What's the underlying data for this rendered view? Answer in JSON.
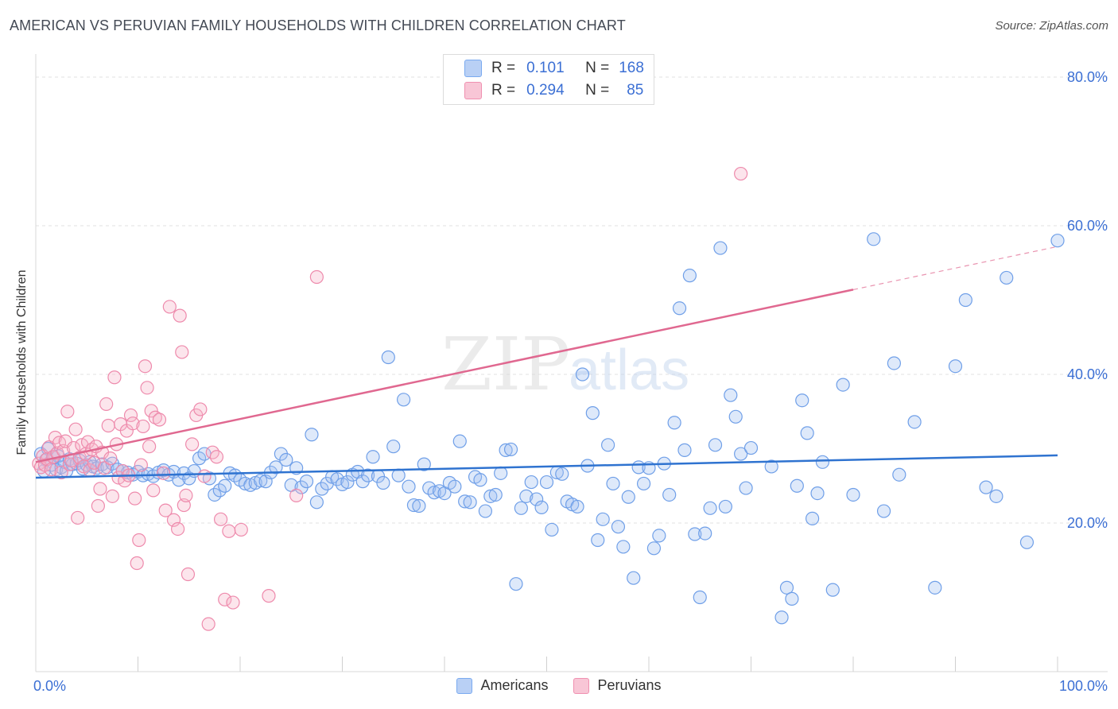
{
  "header": {
    "title": "AMERICAN VS PERUVIAN FAMILY HOUSEHOLDS WITH CHILDREN CORRELATION CHART",
    "source": "Source: ZipAtlas.com"
  },
  "watermark": {
    "zip": "ZIP",
    "atlas": "atlas"
  },
  "legend_top": [
    {
      "r_label": "R =",
      "r_value": "0.101",
      "n_label": "N =",
      "n_value": "168",
      "color": "#7aaaf0",
      "fill": "#b9d0f5"
    },
    {
      "r_label": "R =",
      "r_value": "0.294",
      "n_label": "N =",
      "n_value": "85",
      "color": "#f090b0",
      "fill": "#f8c6d6"
    }
  ],
  "legend_bottom": [
    {
      "label": "Americans",
      "color": "#7aaaf0",
      "fill": "#b9d0f5"
    },
    {
      "label": "Peruvians",
      "color": "#f090b0",
      "fill": "#f8c6d6"
    }
  ],
  "colors": {
    "americans_stroke": "#6f9fe8",
    "americans_fill": "rgba(160,192,240,0.35)",
    "americans_line": "#2f73d0",
    "peruvians_stroke": "#ee8aac",
    "peruvians_fill": "rgba(245,180,200,0.35)",
    "peruvians_line": "#e06890",
    "tick_label": "#3b6fd4"
  },
  "chart_data": {
    "type": "scatter",
    "title": "AMERICAN VS PERUVIAN FAMILY HOUSEHOLDS WITH CHILDREN CORRELATION CHART",
    "xlabel": "",
    "ylabel": "Family Households with Children",
    "xlim": [
      0,
      100
    ],
    "ylim": [
      0,
      80
    ],
    "x_tick_labels": [
      "0.0%",
      "100.0%"
    ],
    "y_ticks": [
      20,
      40,
      60,
      80
    ],
    "y_tick_labels": [
      "20.0%",
      "40.0%",
      "60.0%",
      "80.0%"
    ],
    "grid": true,
    "legend_placement": "top-center",
    "series": [
      {
        "name": "Americans",
        "r": 0.101,
        "n": 168,
        "trend": {
          "x": [
            0,
            100
          ],
          "y": [
            26.1,
            29.1
          ],
          "solid_to": 100
        },
        "points": [
          [
            0.5,
            29.3
          ],
          [
            0.8,
            27.0
          ],
          [
            1.0,
            28.5
          ],
          [
            1.2,
            30.0
          ],
          [
            1.5,
            27.8
          ],
          [
            1.8,
            28.8
          ],
          [
            2.0,
            27.2
          ],
          [
            2.2,
            29.0
          ],
          [
            2.5,
            27.5
          ],
          [
            2.8,
            28.2
          ],
          [
            3.0,
            27.0
          ],
          [
            3.3,
            28.6
          ],
          [
            3.6,
            27.9
          ],
          [
            4.0,
            28.0
          ],
          [
            4.3,
            28.4
          ],
          [
            4.6,
            27.3
          ],
          [
            5.0,
            27.8
          ],
          [
            5.3,
            28.2
          ],
          [
            5.6,
            27.6
          ],
          [
            6.0,
            27.4
          ],
          [
            6.5,
            27.9
          ],
          [
            7.0,
            27.5
          ],
          [
            7.5,
            28.0
          ],
          [
            8.0,
            27.2
          ],
          [
            8.5,
            27.0
          ],
          [
            9.0,
            26.8
          ],
          [
            9.5,
            26.5
          ],
          [
            10.0,
            26.9
          ],
          [
            10.5,
            26.4
          ],
          [
            11.0,
            26.6
          ],
          [
            11.5,
            26.3
          ],
          [
            12.0,
            26.8
          ],
          [
            12.5,
            27.1
          ],
          [
            13.0,
            26.5
          ],
          [
            13.5,
            26.9
          ],
          [
            14.0,
            25.8
          ],
          [
            14.5,
            26.7
          ],
          [
            15.0,
            26.0
          ],
          [
            15.5,
            27.0
          ],
          [
            16.0,
            28.7
          ],
          [
            16.5,
            29.3
          ],
          [
            17.0,
            26.0
          ],
          [
            17.5,
            23.8
          ],
          [
            18.0,
            24.4
          ],
          [
            18.5,
            25.0
          ],
          [
            19.0,
            26.7
          ],
          [
            19.5,
            26.4
          ],
          [
            20.0,
            25.8
          ],
          [
            20.5,
            25.3
          ],
          [
            21.0,
            25.1
          ],
          [
            21.5,
            25.4
          ],
          [
            22.0,
            25.7
          ],
          [
            22.5,
            25.6
          ],
          [
            23.0,
            26.8
          ],
          [
            23.5,
            27.5
          ],
          [
            24.0,
            29.3
          ],
          [
            24.5,
            28.5
          ],
          [
            25.0,
            25.1
          ],
          [
            25.5,
            27.4
          ],
          [
            26.0,
            24.8
          ],
          [
            26.5,
            25.6
          ],
          [
            27.0,
            31.9
          ],
          [
            27.5,
            22.8
          ],
          [
            28.0,
            24.6
          ],
          [
            28.5,
            25.3
          ],
          [
            29.0,
            26.2
          ],
          [
            29.5,
            25.9
          ],
          [
            30.0,
            25.2
          ],
          [
            30.5,
            25.5
          ],
          [
            31.0,
            26.5
          ],
          [
            31.5,
            26.9
          ],
          [
            32.0,
            25.6
          ],
          [
            32.5,
            26.4
          ],
          [
            33.0,
            28.9
          ],
          [
            33.5,
            26.3
          ],
          [
            34.0,
            25.4
          ],
          [
            34.5,
            42.3
          ],
          [
            35.0,
            30.3
          ],
          [
            35.5,
            26.4
          ],
          [
            36.0,
            36.6
          ],
          [
            36.5,
            24.9
          ],
          [
            37.0,
            22.4
          ],
          [
            37.5,
            22.3
          ],
          [
            38.0,
            27.9
          ],
          [
            38.5,
            24.7
          ],
          [
            39.0,
            24.1
          ],
          [
            39.5,
            24.3
          ],
          [
            40.0,
            24.0
          ],
          [
            40.5,
            25.4
          ],
          [
            41.0,
            24.9
          ],
          [
            41.5,
            31.0
          ],
          [
            42.0,
            22.9
          ],
          [
            42.5,
            22.8
          ],
          [
            43.0,
            26.2
          ],
          [
            43.5,
            25.8
          ],
          [
            44.0,
            21.6
          ],
          [
            44.5,
            23.6
          ],
          [
            45.0,
            23.8
          ],
          [
            45.5,
            26.7
          ],
          [
            46.0,
            29.8
          ],
          [
            46.5,
            29.9
          ],
          [
            47.0,
            11.8
          ],
          [
            47.5,
            22.0
          ],
          [
            48.0,
            23.6
          ],
          [
            48.5,
            25.5
          ],
          [
            49.0,
            23.2
          ],
          [
            49.5,
            22.1
          ],
          [
            50.0,
            25.5
          ],
          [
            50.5,
            19.1
          ],
          [
            51.0,
            26.8
          ],
          [
            51.5,
            26.6
          ],
          [
            52.0,
            22.9
          ],
          [
            52.5,
            22.5
          ],
          [
            53.0,
            22.2
          ],
          [
            53.5,
            40.0
          ],
          [
            54.0,
            27.7
          ],
          [
            54.5,
            34.8
          ],
          [
            55.0,
            17.7
          ],
          [
            55.5,
            20.5
          ],
          [
            56.0,
            30.5
          ],
          [
            56.5,
            25.3
          ],
          [
            57.0,
            19.5
          ],
          [
            57.5,
            16.8
          ],
          [
            58.0,
            23.5
          ],
          [
            58.5,
            12.6
          ],
          [
            59.0,
            27.5
          ],
          [
            59.5,
            25.3
          ],
          [
            60.0,
            27.4
          ],
          [
            60.5,
            16.6
          ],
          [
            61.0,
            18.3
          ],
          [
            61.5,
            28.0
          ],
          [
            62.0,
            23.8
          ],
          [
            62.5,
            33.5
          ],
          [
            63.0,
            48.9
          ],
          [
            63.5,
            29.8
          ],
          [
            64.0,
            53.3
          ],
          [
            64.5,
            18.5
          ],
          [
            65.0,
            10.0
          ],
          [
            65.5,
            18.6
          ],
          [
            66.0,
            22.0
          ],
          [
            66.5,
            30.5
          ],
          [
            67.0,
            57.0
          ],
          [
            67.5,
            22.2
          ],
          [
            68.0,
            37.2
          ],
          [
            68.5,
            34.3
          ],
          [
            69.0,
            29.3
          ],
          [
            69.5,
            24.7
          ],
          [
            70.0,
            30.1
          ],
          [
            72.0,
            27.6
          ],
          [
            73.0,
            7.3
          ],
          [
            73.5,
            11.3
          ],
          [
            74.0,
            9.8
          ],
          [
            74.5,
            25.0
          ],
          [
            75.0,
            36.5
          ],
          [
            75.5,
            32.1
          ],
          [
            76.0,
            20.6
          ],
          [
            76.5,
            24.0
          ],
          [
            77.0,
            28.2
          ],
          [
            78.0,
            11.0
          ],
          [
            79.0,
            38.6
          ],
          [
            80.0,
            23.8
          ],
          [
            82.0,
            58.2
          ],
          [
            83.0,
            21.6
          ],
          [
            84.0,
            41.5
          ],
          [
            84.5,
            26.5
          ],
          [
            86.0,
            33.6
          ],
          [
            88.0,
            11.3
          ],
          [
            90.0,
            41.1
          ],
          [
            91.0,
            50.0
          ],
          [
            93.0,
            24.8
          ],
          [
            94.0,
            23.6
          ],
          [
            95.0,
            53.0
          ],
          [
            97.0,
            17.4
          ],
          [
            100.0,
            58.0
          ]
        ]
      },
      {
        "name": "Peruvians",
        "r": 0.294,
        "n": 85,
        "trend": {
          "x": [
            0,
            100
          ],
          "y": [
            28.2,
            57.2
          ],
          "solid_to": 80
        },
        "points": [
          [
            0.3,
            28.0
          ],
          [
            0.5,
            27.5
          ],
          [
            0.7,
            29.0
          ],
          [
            0.9,
            27.8
          ],
          [
            1.1,
            28.6
          ],
          [
            1.3,
            30.2
          ],
          [
            1.5,
            27.2
          ],
          [
            1.7,
            28.9
          ],
          [
            1.9,
            31.5
          ],
          [
            2.1,
            29.4
          ],
          [
            2.3,
            30.8
          ],
          [
            2.5,
            26.8
          ],
          [
            2.7,
            29.7
          ],
          [
            2.9,
            31.0
          ],
          [
            3.1,
            35.0
          ],
          [
            3.3,
            27.9
          ],
          [
            3.5,
            28.4
          ],
          [
            3.7,
            30.1
          ],
          [
            3.9,
            32.6
          ],
          [
            4.1,
            20.7
          ],
          [
            4.3,
            28.8
          ],
          [
            4.5,
            30.5
          ],
          [
            4.7,
            27.6
          ],
          [
            4.9,
            29.3
          ],
          [
            5.1,
            30.9
          ],
          [
            5.3,
            27.1
          ],
          [
            5.5,
            29.9
          ],
          [
            5.7,
            28.1
          ],
          [
            5.9,
            30.3
          ],
          [
            6.1,
            22.3
          ],
          [
            6.3,
            24.6
          ],
          [
            6.5,
            29.5
          ],
          [
            6.7,
            27.4
          ],
          [
            6.9,
            36.0
          ],
          [
            7.1,
            33.1
          ],
          [
            7.3,
            28.7
          ],
          [
            7.5,
            23.6
          ],
          [
            7.7,
            39.6
          ],
          [
            7.9,
            30.6
          ],
          [
            8.1,
            26.1
          ],
          [
            8.3,
            33.3
          ],
          [
            8.5,
            27.0
          ],
          [
            8.7,
            25.7
          ],
          [
            8.9,
            32.4
          ],
          [
            9.1,
            26.4
          ],
          [
            9.3,
            34.5
          ],
          [
            9.5,
            33.4
          ],
          [
            9.7,
            23.3
          ],
          [
            9.9,
            14.6
          ],
          [
            10.1,
            17.7
          ],
          [
            10.3,
            27.8
          ],
          [
            10.5,
            33.0
          ],
          [
            10.7,
            41.1
          ],
          [
            10.9,
            38.2
          ],
          [
            11.1,
            30.3
          ],
          [
            11.3,
            35.1
          ],
          [
            11.5,
            24.4
          ],
          [
            11.7,
            34.2
          ],
          [
            12.1,
            33.9
          ],
          [
            12.5,
            26.7
          ],
          [
            12.7,
            21.7
          ],
          [
            13.1,
            49.1
          ],
          [
            13.5,
            20.4
          ],
          [
            13.9,
            19.2
          ],
          [
            14.1,
            47.9
          ],
          [
            14.3,
            43.0
          ],
          [
            14.5,
            22.4
          ],
          [
            14.7,
            23.7
          ],
          [
            14.9,
            13.1
          ],
          [
            15.3,
            30.6
          ],
          [
            15.7,
            34.5
          ],
          [
            16.1,
            35.3
          ],
          [
            16.5,
            26.3
          ],
          [
            16.9,
            6.4
          ],
          [
            17.3,
            29.5
          ],
          [
            17.7,
            28.9
          ],
          [
            18.1,
            20.5
          ],
          [
            18.5,
            9.7
          ],
          [
            18.9,
            18.9
          ],
          [
            19.3,
            9.3
          ],
          [
            20.1,
            19.1
          ],
          [
            22.8,
            10.2
          ],
          [
            25.5,
            23.7
          ],
          [
            27.5,
            53.1
          ],
          [
            69.0,
            67.0
          ]
        ]
      }
    ]
  }
}
